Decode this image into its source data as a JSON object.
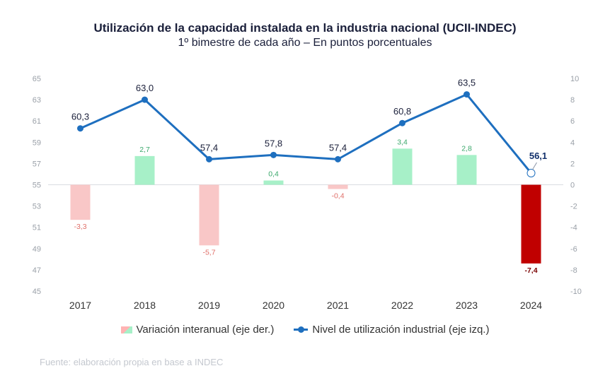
{
  "title": "Utilización de la capacidad instalada en la industria nacional (UCII-INDEC)",
  "subtitle": "1º bimestre de cada año – En puntos porcentuales",
  "source": "Fuente: elaboración propia en base a INDEC",
  "legend": {
    "bars": "Variación interanual (eje der.)",
    "line": "Nivel de utilización industrial (eje izq.)"
  },
  "colors": {
    "line": "#1e6fbf",
    "positive": "#a7f0c8",
    "negative": "#f9c7c7",
    "highlight_negative": "#c00000",
    "positive_label": "#3aa86b",
    "negative_label": "#e0706a",
    "axis_text": "#9aa0a8"
  },
  "chart_data": {
    "type": "bar",
    "categories": [
      "2017",
      "2018",
      "2019",
      "2020",
      "2021",
      "2022",
      "2023",
      "2024"
    ],
    "series": [
      {
        "name": "Variación interanual (eje der.)",
        "type": "bar",
        "axis": "right",
        "values": [
          -3.3,
          2.7,
          -5.7,
          0.4,
          -0.4,
          3.4,
          2.8,
          -7.4
        ],
        "labels": [
          "-3,3",
          "2,7",
          "-5,7",
          "0,4",
          "-0,4",
          "3,4",
          "2,8",
          "-7,4"
        ]
      },
      {
        "name": "Nivel de utilización industrial (eje izq.)",
        "type": "line",
        "axis": "left",
        "values": [
          60.3,
          63.0,
          57.4,
          57.8,
          57.4,
          60.8,
          63.5,
          56.1
        ],
        "labels": [
          "60,3",
          "63,0",
          "57,4",
          "57,8",
          "57,4",
          "60,8",
          "63,5",
          "56,1"
        ]
      }
    ],
    "y_left": {
      "range": [
        45,
        65
      ],
      "ticks": [
        "45",
        "47",
        "49",
        "51",
        "53",
        "55",
        "57",
        "59",
        "61",
        "63",
        "65"
      ]
    },
    "y_right": {
      "range": [
        -10,
        10
      ],
      "ticks": [
        "-10",
        "-8",
        "-6",
        "-4",
        "-2",
        "0",
        "2",
        "4",
        "6",
        "8",
        "10"
      ]
    },
    "highlight_category": "2024",
    "legend_position": "bottom"
  }
}
